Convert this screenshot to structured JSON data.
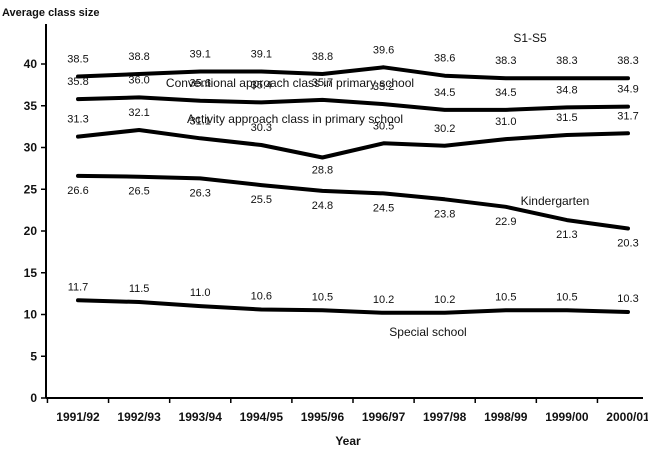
{
  "chart_data": {
    "type": "line",
    "title": "",
    "ylabel": "Average class size",
    "xlabel": "Year",
    "ylim": [
      0,
      40
    ],
    "yticks": [
      "0",
      "5",
      "10",
      "15",
      "20",
      "25",
      "30",
      "35",
      "40"
    ],
    "categories": [
      "1991/92",
      "1992/93",
      "1993/94",
      "1994/95",
      "1995/96",
      "1996/97",
      "1997/98",
      "1998/99",
      "1999/00",
      "2000/01"
    ],
    "grid": false,
    "series": [
      {
        "name": "S1-S5",
        "values": [
          38.5,
          38.8,
          39.1,
          39.1,
          38.8,
          39.6,
          38.6,
          38.3,
          38.3,
          38.3
        ],
        "labels": [
          "38.5",
          "38.8",
          "39.1",
          "39.1",
          "38.8",
          "39.6",
          "38.6",
          "38.3",
          "38.3",
          "38.3"
        ]
      },
      {
        "name": "Conventional approach class in primary school",
        "values": [
          35.8,
          36.0,
          35.6,
          35.4,
          35.7,
          35.2,
          34.5,
          34.5,
          34.8,
          34.9
        ],
        "labels": [
          "35.8",
          "36.0",
          "35.6",
          "35.4",
          "35.7",
          "35.2",
          "34.5",
          "34.5",
          "34.8",
          "34.9"
        ]
      },
      {
        "name": "Activity approach class in primary school",
        "values": [
          31.3,
          32.1,
          31.1,
          30.3,
          28.8,
          30.5,
          30.2,
          31.0,
          31.5,
          31.7
        ],
        "labels": [
          "31.3",
          "32.1",
          "31.1",
          "30.3",
          "28.8",
          "30.5",
          "30.2",
          "31.0",
          "31.5",
          "31.7"
        ]
      },
      {
        "name": "Kindergarten",
        "values": [
          26.6,
          26.5,
          26.3,
          25.5,
          24.8,
          24.5,
          23.8,
          22.9,
          21.3,
          20.3
        ],
        "labels": [
          "26.6",
          "26.5",
          "26.3",
          "25.5",
          "24.8",
          "24.5",
          "23.8",
          "22.9",
          "21.3",
          "20.3"
        ]
      },
      {
        "name": "Special school",
        "values": [
          11.7,
          11.5,
          11.0,
          10.6,
          10.5,
          10.2,
          10.2,
          10.5,
          10.5,
          10.3
        ],
        "labels": [
          "11.7",
          "11.5",
          "11.0",
          "10.6",
          "10.5",
          "10.2",
          "10.2",
          "10.5",
          "10.5",
          "10.3"
        ]
      }
    ]
  }
}
